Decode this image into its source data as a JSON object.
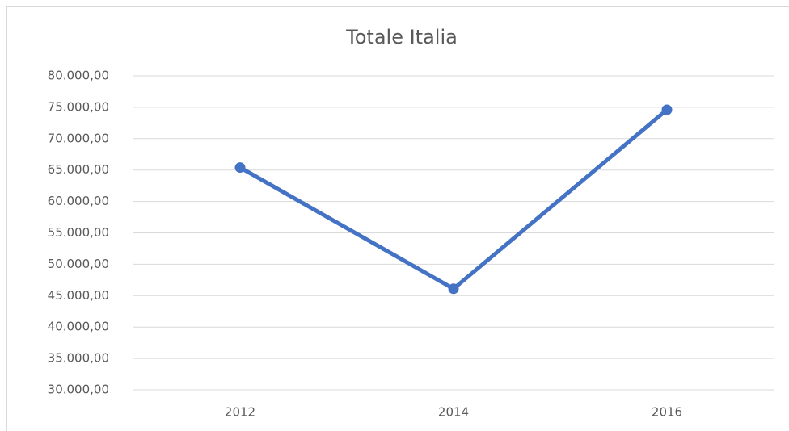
{
  "chart_data": {
    "type": "line",
    "title": "Totale Italia",
    "categories": [
      "2012",
      "2014",
      "2016"
    ],
    "series": [
      {
        "name": "Totale Italia",
        "color": "#4472c4",
        "values": [
          65400,
          46100,
          74600
        ]
      }
    ],
    "ylim": [
      30000,
      80000
    ],
    "yticks": [
      {
        "value": 30000,
        "label": "30.000,00"
      },
      {
        "value": 35000,
        "label": "35.000,00"
      },
      {
        "value": 40000,
        "label": "40.000,00"
      },
      {
        "value": 45000,
        "label": "45.000,00"
      },
      {
        "value": 50000,
        "label": "50.000,00"
      },
      {
        "value": 55000,
        "label": "55.000,00"
      },
      {
        "value": 60000,
        "label": "60.000,00"
      },
      {
        "value": 65000,
        "label": "65.000,00"
      },
      {
        "value": 70000,
        "label": "70.000,00"
      },
      {
        "value": 75000,
        "label": "75.000,00"
      },
      {
        "value": 80000,
        "label": "80.000,00"
      }
    ],
    "grid": true
  }
}
